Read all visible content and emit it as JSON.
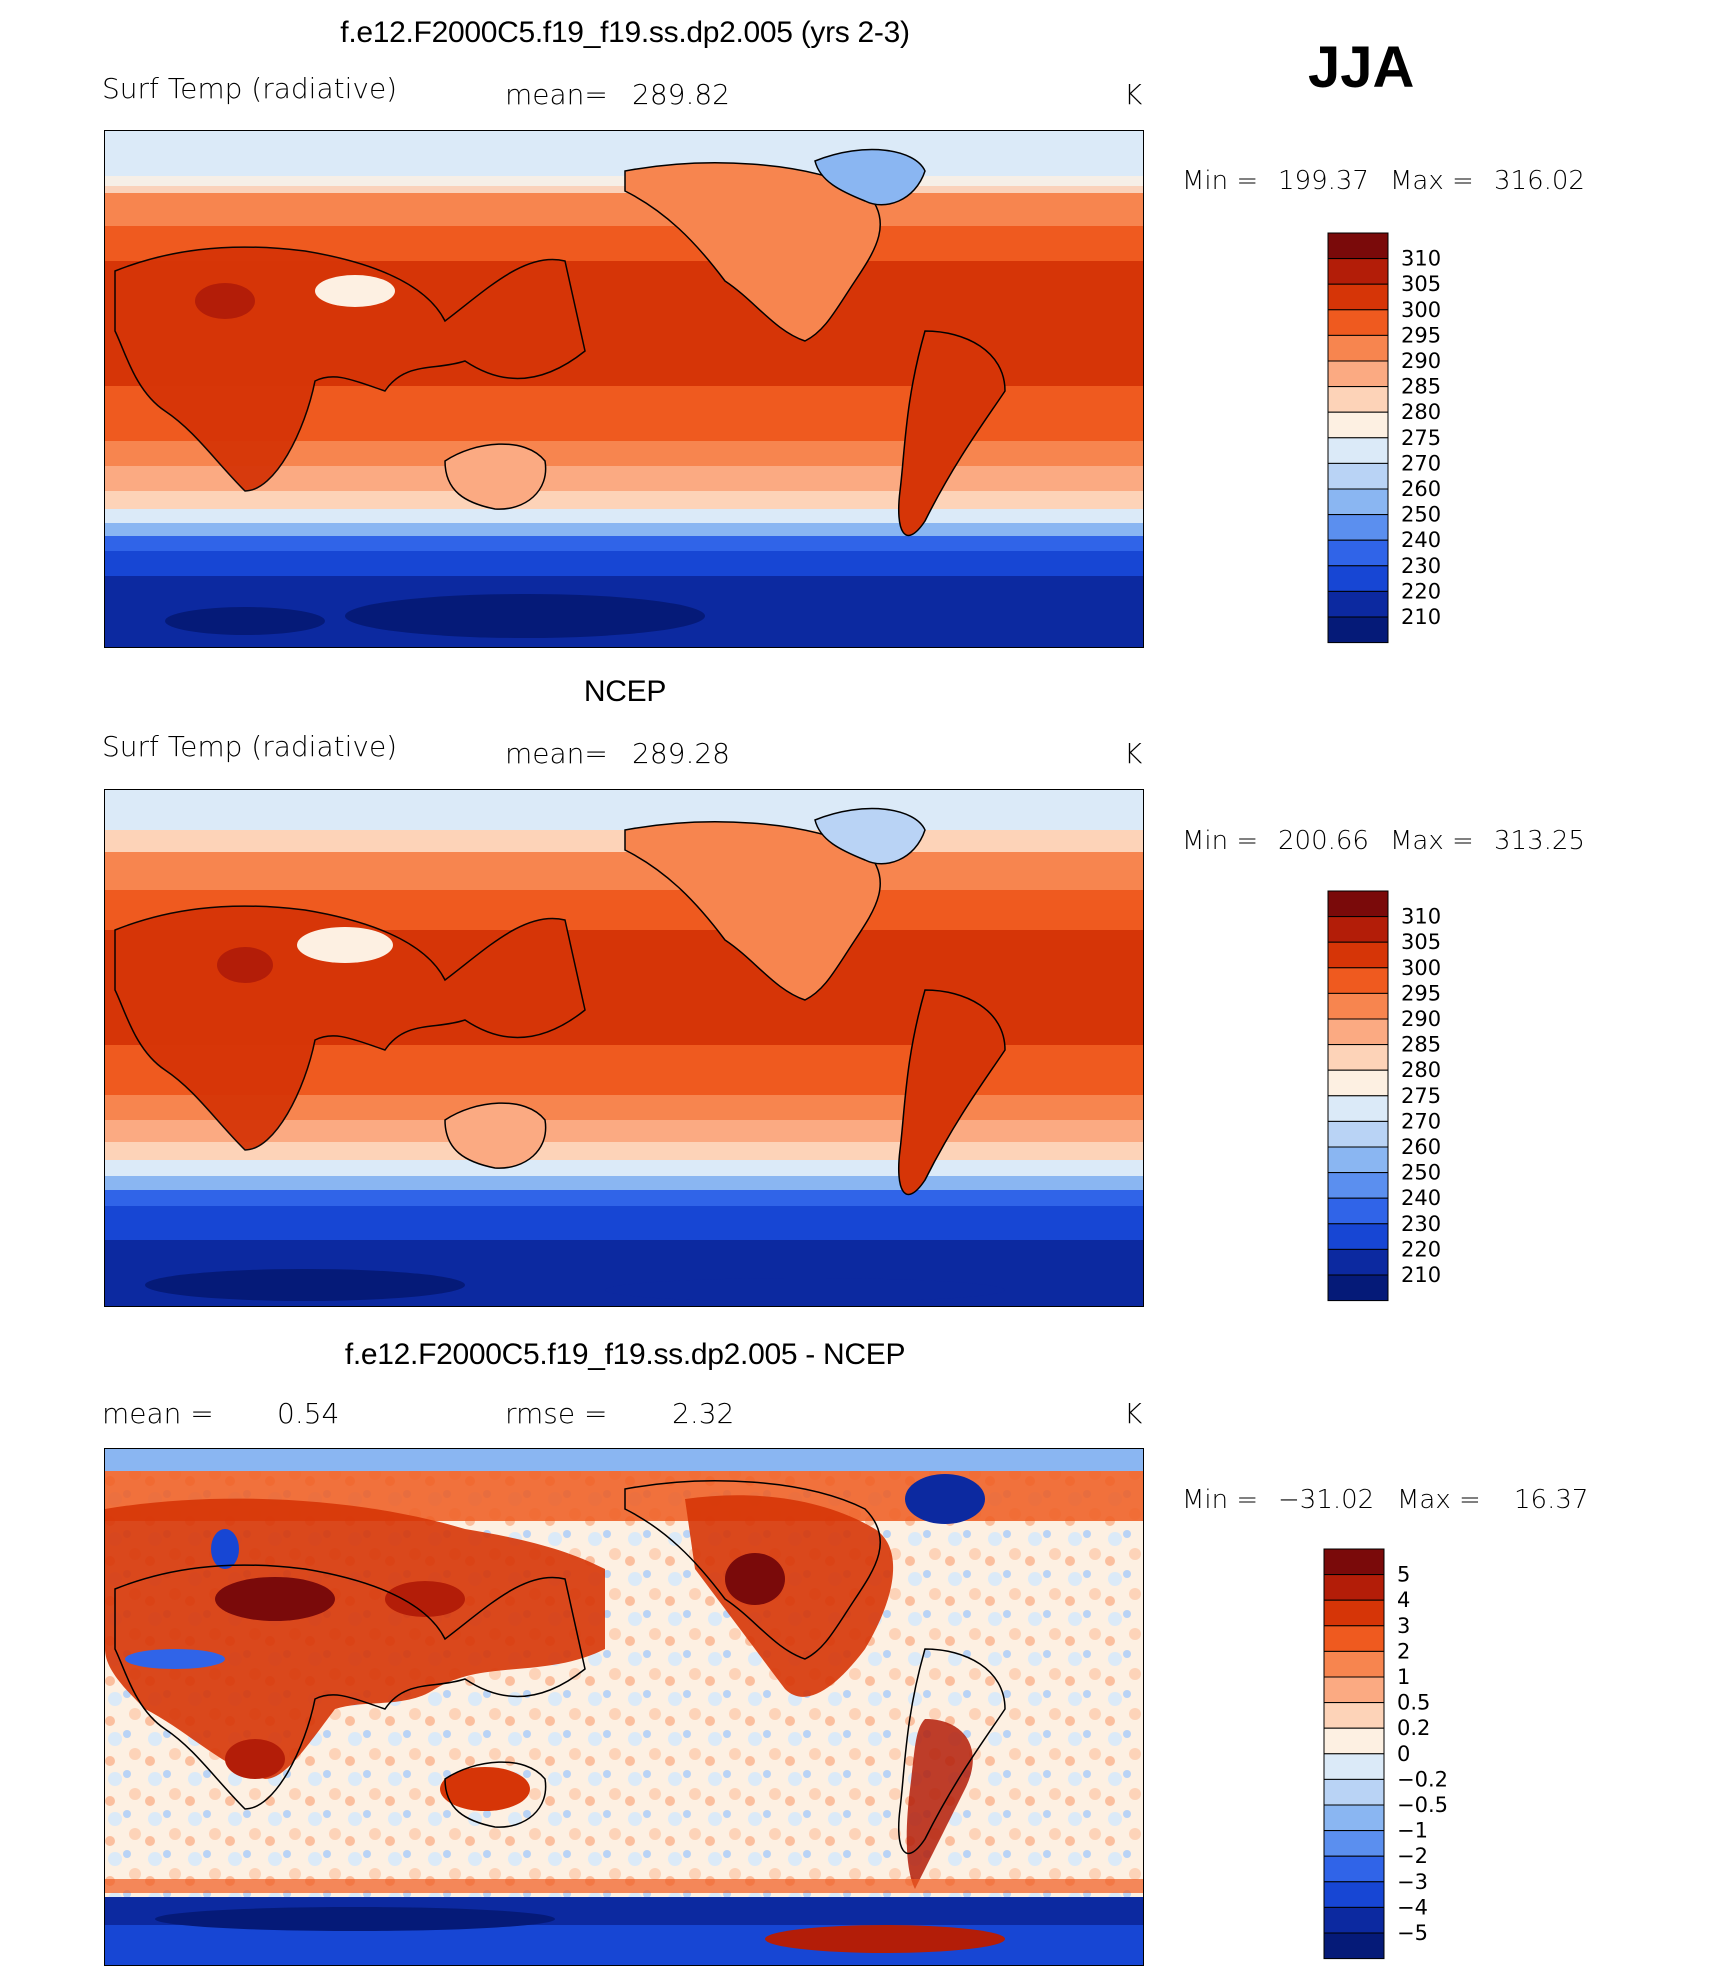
{
  "figure": {
    "season": "JJA"
  },
  "chart_data": [
    {
      "type": "heatmap",
      "title": "f.e12.F2000C5.f19_f19.ss.dp2.005 (yrs 2-3)",
      "variable": "Surf Temp (radiative)",
      "stat_label": "mean=",
      "stat_value": "289.82",
      "units": "K",
      "min_label": "Min =",
      "min_value": "199.37",
      "max_label": "Max =",
      "max_value": "316.02",
      "colorbar_levels": [
        "310",
        "305",
        "300",
        "295",
        "290",
        "285",
        "280",
        "275",
        "270",
        "260",
        "250",
        "240",
        "230",
        "220",
        "210"
      ],
      "colors": [
        "#7a0a0a",
        "#b31d08",
        "#d63507",
        "#ef5a1f",
        "#f7854f",
        "#fbaa82",
        "#fdd3b8",
        "#fdf0e2",
        "#dbeaf8",
        "#b9d3f5",
        "#8ab6f2",
        "#5b8fef",
        "#3064e8",
        "#1746d4",
        "#0c29a0",
        "#051a78"
      ],
      "grid": false,
      "legend": "right"
    },
    {
      "type": "heatmap",
      "title": "NCEP",
      "variable": "Surf Temp (radiative)",
      "stat_label": "mean=",
      "stat_value": "289.28",
      "units": "K",
      "min_label": "Min =",
      "min_value": "200.66",
      "max_label": "Max =",
      "max_value": "313.25",
      "colorbar_levels": [
        "310",
        "305",
        "300",
        "295",
        "290",
        "285",
        "280",
        "275",
        "270",
        "260",
        "250",
        "240",
        "230",
        "220",
        "210"
      ],
      "colors": [
        "#7a0a0a",
        "#b31d08",
        "#d63507",
        "#ef5a1f",
        "#f7854f",
        "#fbaa82",
        "#fdd3b8",
        "#fdf0e2",
        "#dbeaf8",
        "#b9d3f5",
        "#8ab6f2",
        "#5b8fef",
        "#3064e8",
        "#1746d4",
        "#0c29a0",
        "#051a78"
      ],
      "grid": false,
      "legend": "right"
    },
    {
      "type": "heatmap",
      "title": "f.e12.F2000C5.f19_f19.ss.dp2.005 - NCEP",
      "stat_label": "mean =",
      "stat_value": "0.54",
      "stat2_label": "rmse =",
      "stat2_value": "2.32",
      "units": "K",
      "min_label": "Min =",
      "min_value": "−31.02",
      "max_label": "Max =",
      "max_value": "16.37",
      "colorbar_levels": [
        "5",
        "4",
        "3",
        "2",
        "1",
        "0.5",
        "0.2",
        "0",
        "−0.2",
        "−0.5",
        "−1",
        "−2",
        "−3",
        "−4",
        "−5"
      ],
      "colors": [
        "#7a0a0a",
        "#b31d08",
        "#d63507",
        "#ef5a1f",
        "#f7854f",
        "#fbaa82",
        "#fdd3b8",
        "#fdf0e2",
        "#dbeaf8",
        "#b9d3f5",
        "#8ab6f2",
        "#5b8fef",
        "#3064e8",
        "#1746d4",
        "#0c29a0",
        "#051a78"
      ],
      "grid": false,
      "legend": "right"
    }
  ]
}
